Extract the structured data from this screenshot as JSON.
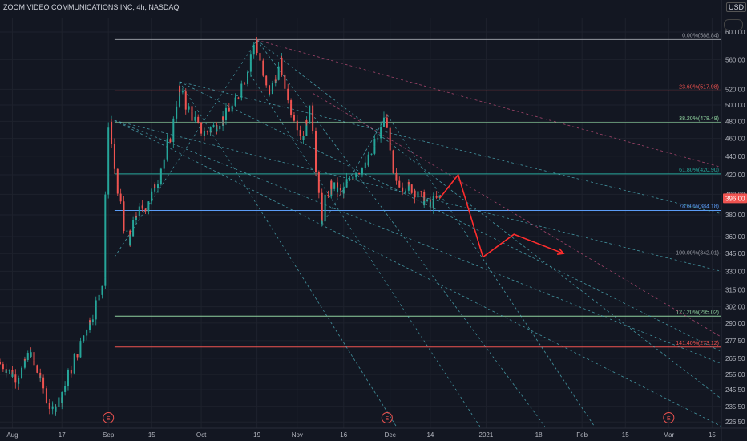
{
  "header": {
    "title": "ZOOM VIDEO COMMUNICATIONS INC, 4h, NASDAQ",
    "currency": "USD"
  },
  "colors": {
    "background": "#131722",
    "up": "#26a69a",
    "down": "#ef5350",
    "fib_red": "#ef5350",
    "fib_green": "#8fd19e",
    "fib_teal": "#26a69a",
    "fib_blue": "#5b9cf6",
    "fib_grey": "#9598a1",
    "trend": "#4fb3bf",
    "trend_pink": "#c04f7a",
    "arrow": "#ff2d2d",
    "price_tag": "#ef5350"
  },
  "chart_data": {
    "type": "candlestick",
    "y_axis": {
      "scale": "log",
      "ylim": [
        223,
        622
      ],
      "ticks": [
        600.0,
        560.0,
        520.0,
        500.0,
        480.0,
        460.0,
        440.0,
        420.0,
        400.0,
        380.0,
        360.0,
        345.0,
        330.0,
        315.0,
        302.0,
        290.0,
        277.5,
        265.5,
        255.0,
        245.5,
        235.5,
        226.5
      ]
    },
    "x_axis": {
      "range": [
        "2020-07-28",
        "2021-03-18"
      ],
      "ticks": [
        {
          "date": "2020-08-01",
          "label": "Aug"
        },
        {
          "date": "2020-08-17",
          "label": "17"
        },
        {
          "date": "2020-09-01",
          "label": "Sep"
        },
        {
          "date": "2020-09-15",
          "label": "15"
        },
        {
          "date": "2020-10-01",
          "label": "Oct"
        },
        {
          "date": "2020-10-19",
          "label": "19"
        },
        {
          "date": "2020-11-01",
          "label": "Nov"
        },
        {
          "date": "2020-11-16",
          "label": "16"
        },
        {
          "date": "2020-12-01",
          "label": "Dec"
        },
        {
          "date": "2020-12-14",
          "label": "14"
        },
        {
          "date": "2021-01-01",
          "label": "2021"
        },
        {
          "date": "2021-01-18",
          "label": "18"
        },
        {
          "date": "2021-02-01",
          "label": "Feb"
        },
        {
          "date": "2021-02-15",
          "label": "15"
        },
        {
          "date": "2021-03-01",
          "label": "Mar"
        },
        {
          "date": "2021-03-15",
          "label": "15"
        }
      ]
    },
    "last_price": "396.00",
    "fib_levels": [
      {
        "label": "0.00%(588.84)",
        "value": 588.84,
        "color": "grey"
      },
      {
        "label": "23.60%(517.98)",
        "value": 517.98,
        "color": "red"
      },
      {
        "label": "38.20%(478.48)",
        "value": 478.48,
        "color": "green"
      },
      {
        "label": "61.80%(420.90)",
        "value": 420.9,
        "color": "teal"
      },
      {
        "label": "78.60%(384.18)",
        "value": 384.18,
        "color": "blue"
      },
      {
        "label": "100.00%(342.01)",
        "value": 342.01,
        "color": "grey"
      },
      {
        "label": "127.20%(295.02)",
        "value": 295.02,
        "color": "green"
      },
      {
        "label": "141.40%(273.12)",
        "value": 273.12,
        "color": "red"
      }
    ],
    "fib_start": "2020-09-03",
    "fib_end": "2021-03-18",
    "earnings_markers": [
      {
        "date": "2020-09-01",
        "label": "E"
      },
      {
        "date": "2020-11-30",
        "label": "E"
      },
      {
        "date": "2021-03-01",
        "label": "E"
      }
    ],
    "price_path": [
      [
        "2020-07-28",
        263
      ],
      [
        "2020-08-03",
        252
      ],
      [
        "2020-08-07",
        270
      ],
      [
        "2020-08-12",
        243
      ],
      [
        "2020-08-14",
        232
      ],
      [
        "2020-08-17",
        241
      ],
      [
        "2020-08-21",
        262
      ],
      [
        "2020-08-25",
        285
      ],
      [
        "2020-08-28",
        300
      ],
      [
        "2020-08-31",
        325
      ],
      [
        "2020-09-01",
        465
      ],
      [
        "2020-09-02",
        480
      ],
      [
        "2020-09-03",
        430
      ],
      [
        "2020-09-08",
        350
      ],
      [
        "2020-09-10",
        380
      ],
      [
        "2020-09-14",
        390
      ],
      [
        "2020-09-18",
        420
      ],
      [
        "2020-09-22",
        470
      ],
      [
        "2020-09-24",
        520
      ],
      [
        "2020-09-28",
        490
      ],
      [
        "2020-10-02",
        465
      ],
      [
        "2020-10-06",
        475
      ],
      [
        "2020-10-12",
        500
      ],
      [
        "2020-10-16",
        540
      ],
      [
        "2020-10-19",
        588
      ],
      [
        "2020-10-21",
        545
      ],
      [
        "2020-10-23",
        510
      ],
      [
        "2020-10-27",
        555
      ],
      [
        "2020-10-30",
        500
      ],
      [
        "2020-11-03",
        460
      ],
      [
        "2020-11-06",
        500
      ],
      [
        "2020-11-09",
        370
      ],
      [
        "2020-11-12",
        410
      ],
      [
        "2020-11-16",
        400
      ],
      [
        "2020-11-19",
        420
      ],
      [
        "2020-11-24",
        430
      ],
      [
        "2020-11-30",
        488
      ],
      [
        "2020-12-02",
        420
      ],
      [
        "2020-12-05",
        410
      ],
      [
        "2020-12-09",
        405
      ],
      [
        "2020-12-14",
        388
      ],
      [
        "2020-12-17",
        396
      ]
    ],
    "trendlines": [
      {
        "from": [
          "2020-09-03",
          481
        ],
        "to": [
          "2021-03-18",
          330
        ]
      },
      {
        "from": [
          "2020-09-03",
          481
        ],
        "to": [
          "2021-03-18",
          262
        ]
      },
      {
        "from": [
          "2020-09-03",
          481
        ],
        "to": [
          "2021-03-18",
          224
        ]
      },
      {
        "from": [
          "2020-09-24",
          530
        ],
        "to": [
          "2021-03-18",
          381
        ]
      },
      {
        "from": [
          "2020-09-24",
          530
        ],
        "to": [
          "2021-03-18",
          270
        ]
      },
      {
        "from": [
          "2020-10-19",
          588
        ],
        "to": [
          "2021-03-18",
          240
        ]
      },
      {
        "from": [
          "2020-10-19",
          588
        ],
        "to": [
          "2021-01-20",
          224
        ]
      },
      {
        "from": [
          "2020-10-19",
          588
        ],
        "to": [
          "2021-03-18",
          428
        ],
        "style": "pink"
      },
      {
        "from": [
          "2020-11-06",
          515
        ],
        "to": [
          "2021-03-18",
          280
        ],
        "style": "pink"
      },
      {
        "from": [
          "2020-09-24",
          530
        ],
        "to": [
          "2020-12-03",
          224
        ]
      },
      {
        "from": [
          "2020-10-16",
          545
        ],
        "to": [
          "2020-12-30",
          224
        ]
      },
      {
        "from": [
          "2020-11-30",
          488
        ],
        "to": [
          "2021-02-05",
          224
        ]
      },
      {
        "from": [
          "2020-09-03",
          342
        ],
        "to": [
          "2020-10-19",
          588
        ]
      },
      {
        "from": [
          "2020-11-09",
          370
        ],
        "to": [
          "2020-11-30",
          488
        ]
      }
    ],
    "projection": [
      [
        "2020-12-17",
        396
      ],
      [
        "2020-12-23",
        420
      ],
      [
        "2020-12-31",
        342
      ],
      [
        "2021-01-10",
        362
      ],
      [
        "2021-01-26",
        345
      ]
    ]
  }
}
